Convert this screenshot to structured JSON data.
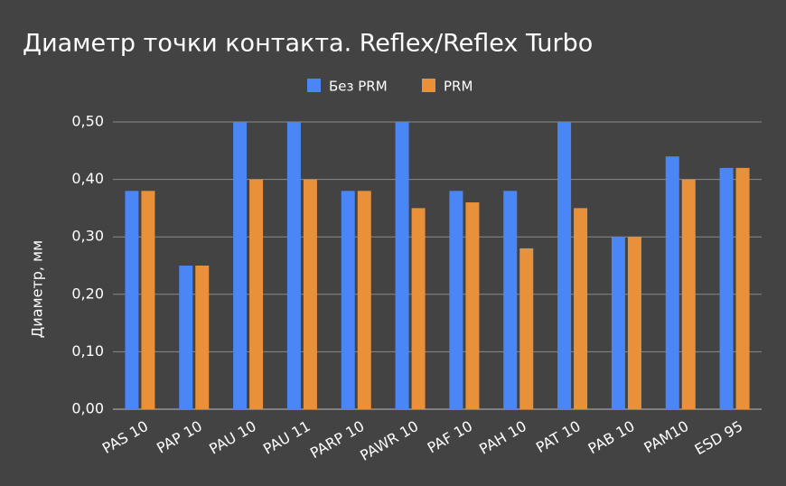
{
  "chart_data": {
    "type": "bar",
    "title": "Диаметр точки контакта. Reflex/Reflex Turbo",
    "y_label": "Диаметр, мм",
    "categories": [
      "PAS 10",
      "PAP 10",
      "PAU 10",
      "PAU 11",
      "PARP 10",
      "PAWR 10",
      "PAF 10",
      "PAH 10",
      "PAT 10",
      "PAB 10",
      "PAM10",
      "ESD 95"
    ],
    "series": [
      {
        "name": "Без PRM",
        "color": "#4a86f5",
        "values": [
          0.38,
          0.25,
          0.5,
          0.5,
          0.38,
          0.5,
          0.38,
          0.38,
          0.5,
          0.3,
          0.44,
          0.42
        ]
      },
      {
        "name": "PRM",
        "color": "#e8913a",
        "values": [
          0.38,
          0.25,
          0.4,
          0.4,
          0.38,
          0.35,
          0.36,
          0.28,
          0.35,
          0.3,
          0.4,
          0.42
        ]
      }
    ],
    "ylim": [
      0,
      0.5
    ],
    "yticks": [
      {
        "value": 0,
        "label": "0,00"
      },
      {
        "value": 0.1,
        "label": "0,10"
      },
      {
        "value": 0.2,
        "label": "0,20"
      },
      {
        "value": 0.3,
        "label": "0,30"
      },
      {
        "value": 0.4,
        "label": "0,40"
      },
      {
        "value": 0.5,
        "label": "0,50"
      }
    ],
    "grid": true,
    "legend": "top"
  }
}
